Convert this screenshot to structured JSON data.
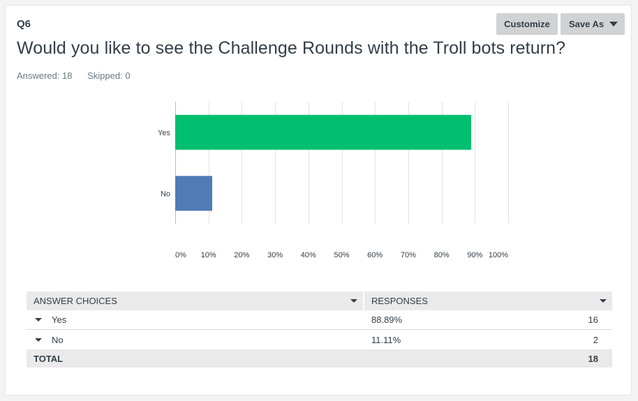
{
  "question": {
    "number": "Q6",
    "title": "Would you like to see the Challenge Rounds with the Troll bots return?",
    "answered": "Answered: 18",
    "skipped": "Skipped: 0"
  },
  "toolbar": {
    "customize_label": "Customize",
    "save_as_label": "Save As"
  },
  "chart_data": {
    "type": "bar",
    "orientation": "horizontal",
    "categories": [
      "Yes",
      "No"
    ],
    "values": [
      88.89,
      11.11
    ],
    "colors": [
      "#00bf6f",
      "#507cb6"
    ],
    "xlim": [
      0,
      100
    ],
    "x_ticks": [
      "0%",
      "10%",
      "20%",
      "30%",
      "40%",
      "50%",
      "60%",
      "70%",
      "80%",
      "90%",
      "100%"
    ],
    "grid": true
  },
  "table": {
    "headers": {
      "choices": "ANSWER CHOICES",
      "responses": "RESPONSES"
    },
    "rows": [
      {
        "choice": "Yes",
        "percent": "88.89%",
        "count": "16"
      },
      {
        "choice": "No",
        "percent": "11.11%",
        "count": "2"
      }
    ],
    "total_label": "TOTAL",
    "total_count": "18"
  },
  "colors": {
    "accent_green": "#00bf6f",
    "accent_blue": "#507cb6",
    "button_bg": "#d0d2d3"
  }
}
